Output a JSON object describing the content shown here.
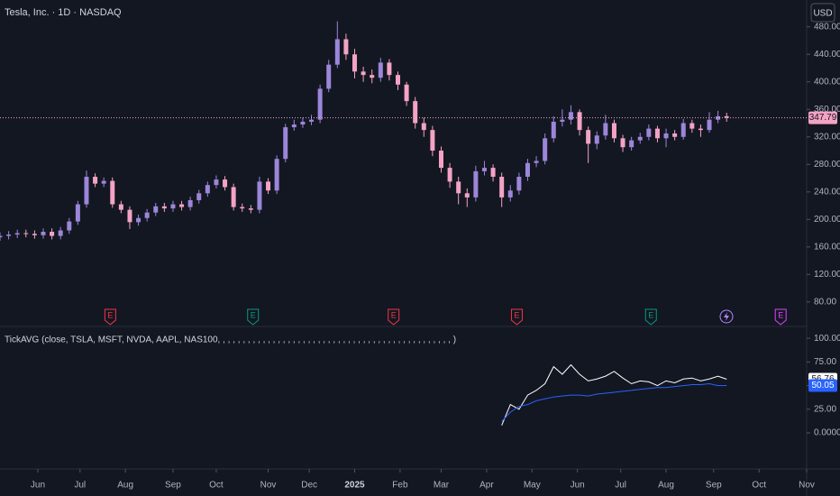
{
  "chart_data": [
    {
      "type": "candlestick",
      "title": "Tesla, Inc. · 1D · NASDAQ",
      "currency": "USD",
      "up_color": "#9c86d9",
      "down_color": "#f4a3c4",
      "xlim": [
        0,
        373
      ],
      "ylim": [
        47,
        519
      ],
      "yticks": [
        {
          "value": 80,
          "label": "80.00"
        },
        {
          "value": 120,
          "label": "120.00"
        },
        {
          "value": 160,
          "label": "160.00"
        },
        {
          "value": 200,
          "label": "200.00"
        },
        {
          "value": 240,
          "label": "240.00"
        },
        {
          "value": 280,
          "label": "280.00"
        },
        {
          "value": 320,
          "label": "320.00"
        },
        {
          "value": 360,
          "label": "360.00"
        },
        {
          "value": 400,
          "label": "400.00"
        },
        {
          "value": 440,
          "label": "440.00"
        },
        {
          "value": 480,
          "label": "480.00"
        }
      ],
      "x": [
        0,
        4,
        8,
        12,
        16,
        20,
        24,
        28,
        32,
        36,
        40,
        44,
        48,
        52,
        56,
        60,
        64,
        68,
        72,
        76,
        80,
        84,
        88,
        92,
        96,
        100,
        104,
        108,
        112,
        116,
        120,
        124,
        128,
        132,
        136,
        140,
        144,
        148,
        152,
        156,
        160,
        164,
        168,
        172,
        176,
        180,
        184,
        188,
        192,
        196,
        200,
        204,
        208,
        212,
        216,
        220,
        224,
        228,
        232,
        236,
        240,
        244,
        248,
        252,
        256,
        260,
        264,
        268,
        272,
        276,
        280,
        284,
        288,
        292,
        296,
        300,
        304,
        308,
        312,
        316,
        320,
        324,
        328,
        332,
        336
      ],
      "open": [
        174,
        176,
        178,
        180,
        179,
        177,
        182,
        176,
        184,
        197,
        222,
        262,
        252,
        256,
        222,
        214,
        196,
        202,
        210,
        219,
        216,
        222,
        218,
        228,
        238,
        250,
        258,
        247,
        218,
        216,
        214,
        255,
        242,
        288,
        334,
        338,
        342,
        345,
        390,
        425,
        462,
        440,
        415,
        410,
        406,
        428,
        410,
        396,
        372,
        340,
        330,
        300,
        275,
        255,
        238,
        232,
        270,
        275,
        262,
        232,
        242,
        262,
        282,
        285,
        318,
        342,
        345,
        356,
        330,
        310,
        322,
        340,
        318,
        305,
        315,
        320,
        332,
        318,
        325,
        320,
        340,
        332,
        330,
        345,
        350
      ],
      "high": [
        181,
        183,
        185,
        185,
        184,
        187,
        187,
        189,
        202,
        227,
        271,
        267,
        261,
        261,
        227,
        219,
        207,
        215,
        224,
        224,
        227,
        227,
        233,
        243,
        255,
        264,
        263,
        252,
        223,
        221,
        262,
        260,
        293,
        339,
        345,
        348,
        352,
        396,
        432,
        488,
        470,
        448,
        422,
        418,
        435,
        433,
        415,
        400,
        378,
        348,
        336,
        306,
        282,
        262,
        245,
        278,
        285,
        280,
        268,
        250,
        268,
        288,
        292,
        325,
        350,
        360,
        366,
        360,
        335,
        328,
        352,
        345,
        323,
        320,
        326,
        338,
        336,
        332,
        330,
        346,
        345,
        338,
        356,
        358,
        355
      ],
      "low": [
        169,
        171,
        173,
        174,
        172,
        172,
        171,
        171,
        179,
        192,
        217,
        247,
        247,
        217,
        209,
        186,
        191,
        197,
        205,
        211,
        211,
        213,
        213,
        223,
        233,
        245,
        242,
        213,
        211,
        209,
        209,
        237,
        237,
        283,
        329,
        333,
        337,
        340,
        385,
        420,
        432,
        405,
        400,
        398,
        400,
        402,
        388,
        365,
        332,
        320,
        292,
        268,
        246,
        222,
        218,
        226,
        264,
        255,
        218,
        226,
        236,
        256,
        276,
        280,
        312,
        335,
        338,
        322,
        282,
        302,
        316,
        312,
        298,
        300,
        310,
        315,
        312,
        305,
        315,
        316,
        326,
        320,
        326,
        340,
        342
      ],
      "close": [
        176,
        178,
        180,
        179,
        177,
        182,
        176,
        184,
        197,
        222,
        262,
        252,
        256,
        222,
        214,
        196,
        202,
        210,
        219,
        216,
        222,
        218,
        228,
        238,
        250,
        258,
        247,
        218,
        216,
        214,
        255,
        242,
        288,
        334,
        338,
        342,
        345,
        390,
        425,
        462,
        440,
        415,
        410,
        406,
        428,
        410,
        396,
        372,
        340,
        330,
        300,
        275,
        255,
        238,
        232,
        270,
        275,
        262,
        232,
        242,
        262,
        282,
        285,
        318,
        342,
        345,
        356,
        330,
        310,
        322,
        340,
        318,
        305,
        315,
        320,
        332,
        318,
        325,
        320,
        340,
        332,
        330,
        345,
        350,
        347.79
      ],
      "events": [
        {
          "x": 51,
          "label": "E",
          "color": "#f23645"
        },
        {
          "x": 117,
          "label": "E",
          "color": "#089981"
        },
        {
          "x": 182,
          "label": "E",
          "color": "#f23645"
        },
        {
          "x": 239,
          "label": "E",
          "color": "#f23645"
        },
        {
          "x": 301,
          "label": "E",
          "color": "#089981"
        },
        {
          "x": 361,
          "label": "E",
          "color": "#e040fb"
        }
      ]
    },
    {
      "type": "line",
      "title": "TickAVG (close, TSLA, MSFT, NVDA, AAPL, NAS100, , , , , , , , , , , , , , , , , , , , , , , , , , , , , , , , , , , , , , , , , , , , , , , )",
      "xlim": [
        0,
        373
      ],
      "ylim": [
        -28.5,
        112.5
      ],
      "yticks": [
        {
          "value": 0,
          "label": "0.0000"
        },
        {
          "value": 25,
          "label": "25.00"
        },
        {
          "value": 50,
          "label": "50.00"
        },
        {
          "value": 75,
          "label": "75.00"
        },
        {
          "value": 100,
          "label": "100.00"
        }
      ],
      "xticks": [
        {
          "value": 17.5,
          "label": "Jun"
        },
        {
          "value": 37,
          "label": "Jul"
        },
        {
          "value": 58,
          "label": "Aug"
        },
        {
          "value": 80,
          "label": "Sep"
        },
        {
          "value": 100,
          "label": "Oct"
        },
        {
          "value": 124,
          "label": "Nov"
        },
        {
          "value": 143,
          "label": "Dec"
        },
        {
          "value": 164,
          "label": "2025"
        },
        {
          "value": 185,
          "label": "Feb"
        },
        {
          "value": 204,
          "label": "Mar"
        },
        {
          "value": 225,
          "label": "Apr"
        },
        {
          "value": 246,
          "label": "May"
        },
        {
          "value": 267,
          "label": "Jun"
        },
        {
          "value": 287,
          "label": "Jul"
        },
        {
          "value": 308,
          "label": "Aug"
        },
        {
          "value": 330,
          "label": "Sep"
        },
        {
          "value": 351,
          "label": "Oct"
        },
        {
          "value": 373,
          "label": "Nov"
        }
      ],
      "x": [
        232,
        236,
        240,
        244,
        248,
        252,
        256,
        260,
        264,
        268,
        272,
        276,
        280,
        284,
        288,
        292,
        296,
        300,
        304,
        308,
        312,
        316,
        320,
        324,
        328,
        332,
        336
      ],
      "series": [
        {
          "color": "#ffffff",
          "values": [
            8,
            30,
            25,
            40,
            45,
            52,
            70,
            62,
            72,
            62,
            55,
            57,
            60,
            65,
            58,
            52,
            55,
            54,
            50,
            55,
            53,
            57,
            58,
            55,
            57,
            60,
            56.76
          ]
        },
        {
          "color": "#2962ff",
          "values": [
            12,
            22,
            28,
            30,
            34,
            36,
            38,
            39,
            40,
            40,
            39,
            41,
            42,
            43,
            44,
            45,
            46,
            47,
            48,
            48,
            49,
            50,
            51,
            51,
            52,
            50,
            50.05
          ]
        }
      ]
    }
  ]
}
